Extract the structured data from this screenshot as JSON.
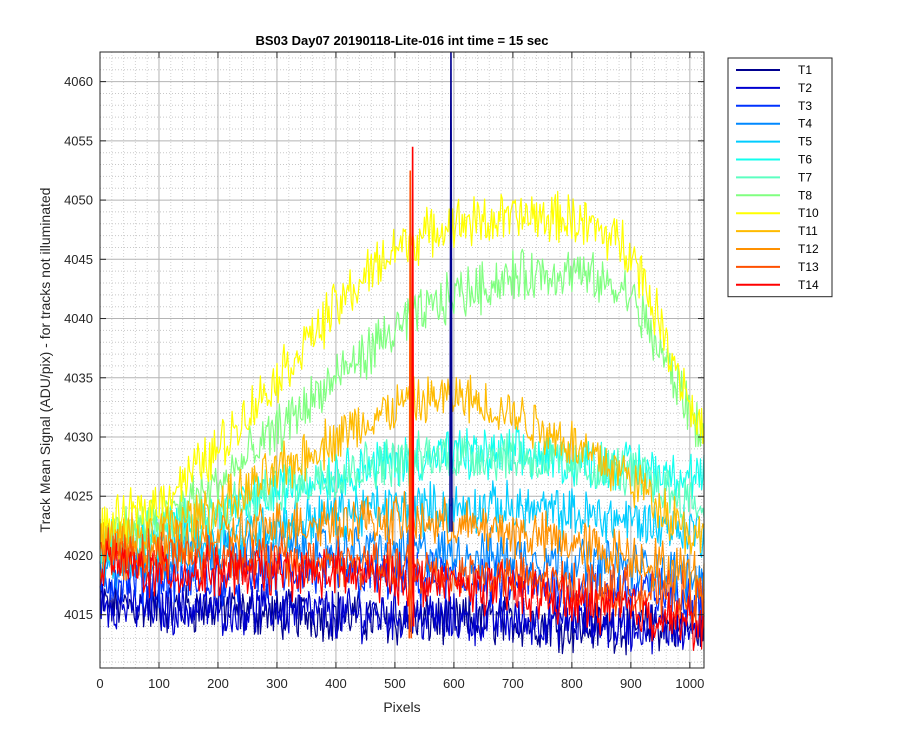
{
  "chart_data": {
    "type": "line",
    "title": "BS03 Day07 20190118-Lite-016 int time = 15 sec",
    "xlabel": "Pixels",
    "ylabel": "Track Mean Signal (ADU/pix) - for tracks not illuminated",
    "xlim": [
      0,
      1024
    ],
    "ylim": [
      4010.5,
      4062.5
    ],
    "xticks": [
      0,
      100,
      200,
      300,
      400,
      500,
      600,
      700,
      800,
      900,
      1000
    ],
    "yticks": [
      4015,
      4020,
      4025,
      4030,
      4035,
      4040,
      4045,
      4050,
      4055,
      4060
    ],
    "grid": true,
    "minor_grid": true,
    "legend_position": "outside-right-top",
    "series": [
      {
        "name": "T1",
        "color": "#00008F",
        "x": [
          0,
          100,
          200,
          300,
          400,
          500,
          600,
          700,
          800,
          900,
          1024
        ],
        "y": [
          4016,
          4015.5,
          4015.5,
          4015,
          4015,
          4014.5,
          4014.5,
          4014.5,
          4014,
          4014,
          4014
        ]
      },
      {
        "name": "T2",
        "color": "#0000D0",
        "x": [
          0,
          100,
          200,
          300,
          400,
          500,
          600,
          700,
          800,
          900,
          1024
        ],
        "y": [
          4016,
          4015.5,
          4015.5,
          4015.5,
          4015,
          4015,
          4014.5,
          4014.5,
          4014.5,
          4014,
          4014
        ]
      },
      {
        "name": "T3",
        "color": "#0033FF",
        "x": [
          0,
          100,
          200,
          300,
          400,
          500,
          600,
          700,
          800,
          900,
          1024
        ],
        "y": [
          4018,
          4018,
          4018,
          4018.5,
          4018.5,
          4018,
          4018,
          4017.5,
          4017.5,
          4017,
          4016.5
        ]
      },
      {
        "name": "T4",
        "color": "#0088FF",
        "x": [
          0,
          100,
          200,
          300,
          400,
          500,
          600,
          700,
          800,
          900,
          1024
        ],
        "y": [
          4019,
          4019.5,
          4020,
          4020.5,
          4020.5,
          4020.5,
          4020,
          4020,
          4019.5,
          4019,
          4018
        ]
      },
      {
        "name": "T5",
        "color": "#00CCFF",
        "x": [
          0,
          100,
          200,
          300,
          400,
          500,
          600,
          700,
          800,
          900,
          1024
        ],
        "y": [
          4020,
          4020.5,
          4021.5,
          4022.5,
          4023.5,
          4024,
          4024,
          4024,
          4023.5,
          4023,
          4022
        ]
      },
      {
        "name": "T6",
        "color": "#12FFEE",
        "x": [
          0,
          100,
          200,
          300,
          400,
          500,
          600,
          700,
          800,
          900,
          1024
        ],
        "y": [
          4021,
          4022,
          4023.5,
          4025.5,
          4027,
          4028,
          4028.5,
          4028.5,
          4028,
          4027.5,
          4026.5
        ]
      },
      {
        "name": "T7",
        "color": "#5CFFC0",
        "x": [
          0,
          100,
          200,
          300,
          400,
          500,
          600,
          700,
          800,
          900,
          1024
        ],
        "y": [
          4021,
          4022,
          4023.5,
          4025.5,
          4027,
          4028,
          4028.5,
          4028.5,
          4027.5,
          4027,
          4024
        ]
      },
      {
        "name": "T8",
        "color": "#80FF80",
        "x": [
          0,
          100,
          200,
          300,
          400,
          500,
          600,
          700,
          800,
          900,
          1024
        ],
        "y": [
          4021.5,
          4023,
          4026,
          4030.5,
          4035,
          4039,
          4042,
          4043.5,
          4044,
          4042,
          4030
        ]
      },
      {
        "name": "T10",
        "color": "#FFFF00",
        "x": [
          0,
          100,
          200,
          300,
          400,
          500,
          600,
          700,
          800,
          900,
          1024
        ],
        "y": [
          4022,
          4024.5,
          4029,
          4035,
          4041,
          4046,
          4048,
          4048.5,
          4048.5,
          4046,
          4030
        ]
      },
      {
        "name": "T11",
        "color": "#FFBB00",
        "x": [
          0,
          100,
          200,
          300,
          400,
          500,
          600,
          700,
          800,
          900,
          1024
        ],
        "y": [
          4021,
          4022,
          4024,
          4027,
          4030,
          4032.5,
          4033.5,
          4032,
          4029.5,
          4026.5,
          4021
        ]
      },
      {
        "name": "T12",
        "color": "#FF9100",
        "x": [
          0,
          100,
          200,
          300,
          400,
          500,
          600,
          700,
          800,
          900,
          1024
        ],
        "y": [
          4020,
          4020.5,
          4021.5,
          4022.5,
          4023,
          4023,
          4022.5,
          4022,
          4021,
          4020,
          4018
        ]
      },
      {
        "name": "T13",
        "color": "#FF5000",
        "x": [
          0,
          100,
          200,
          300,
          400,
          500,
          600,
          700,
          800,
          900,
          1024
        ],
        "y": [
          4020.5,
          4020,
          4020,
          4019.5,
          4019.5,
          4019,
          4018.5,
          4018,
          4017.5,
          4017,
          4016
        ]
      },
      {
        "name": "T14",
        "color": "#FF0000",
        "x": [
          0,
          100,
          200,
          300,
          400,
          500,
          600,
          700,
          800,
          900,
          1024
        ],
        "y": [
          4019.5,
          4018.5,
          4018.5,
          4018.5,
          4018.5,
          4018,
          4017.5,
          4017,
          4016,
          4015.5,
          4014
        ]
      }
    ],
    "spikes": [
      {
        "series": "T1",
        "x": 595,
        "y_min": 4022,
        "y_max": 4062.5
      },
      {
        "series": "T14",
        "x": 530,
        "y_min": 4014,
        "y_max": 4054.5
      },
      {
        "series": "T13",
        "x": 526,
        "y_min": 4013,
        "y_max": 4052.5
      }
    ]
  }
}
